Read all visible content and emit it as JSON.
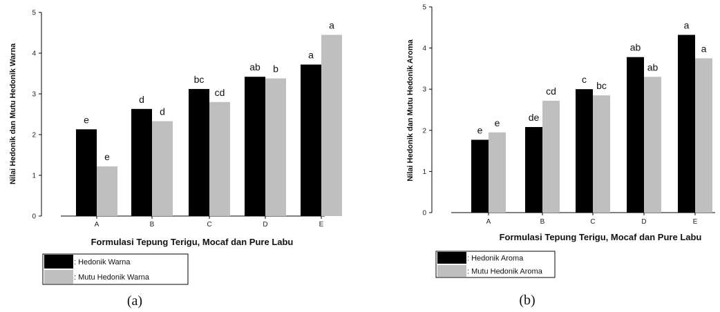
{
  "chart_data": [
    {
      "type": "bar",
      "panel_caption": "(a)",
      "categories": [
        "A",
        "B",
        "C",
        "D",
        "E"
      ],
      "xlabel": "Formulasi Tepung Terigu, Mocaf dan Pure Labu",
      "ylabel": "Nilai Hedonik dan Mutu Hedonik Warna",
      "ylim": [
        0,
        5
      ],
      "yticks": [
        "0",
        "1",
        "2",
        "3",
        "4",
        "5"
      ],
      "legend_position": "bottom-left",
      "grid": false,
      "series": [
        {
          "name": ": Hedonik Warna",
          "color": "#000000",
          "values": [
            2.13,
            2.63,
            3.12,
            3.42,
            3.72
          ],
          "labels": [
            "e",
            "d",
            "bc",
            "ab",
            "a"
          ]
        },
        {
          "name": ": Mutu Hedonik Warna",
          "color": "#bfbfbf",
          "values": [
            1.22,
            2.33,
            2.8,
            3.38,
            4.45
          ],
          "labels": [
            "e",
            "d",
            "cd",
            "b",
            "a"
          ]
        }
      ]
    },
    {
      "type": "bar",
      "panel_caption": "(b)",
      "categories": [
        "A",
        "B",
        "C",
        "D",
        "E"
      ],
      "xlabel": "Formulasi Tepung Terigu, Mocaf dan Pure Labu",
      "ylabel": "Nilai Hedonik dan Mutu Hedonik Aroma",
      "ylim": [
        0,
        5
      ],
      "yticks": [
        "0",
        "1",
        "2",
        "3",
        "4",
        "5"
      ],
      "legend_position": "bottom-left",
      "grid": false,
      "series": [
        {
          "name": ": Hedonik Aroma",
          "color": "#000000",
          "values": [
            1.77,
            2.08,
            3.0,
            3.78,
            4.32
          ],
          "labels": [
            "e",
            "de",
            "c",
            "ab",
            "a"
          ]
        },
        {
          "name": ": Mutu Hedonik Aroma",
          "color": "#bfbfbf",
          "values": [
            1.95,
            2.72,
            2.85,
            3.3,
            3.75
          ],
          "labels": [
            "e",
            "cd",
            "bc",
            "ab",
            "a"
          ]
        }
      ]
    }
  ]
}
